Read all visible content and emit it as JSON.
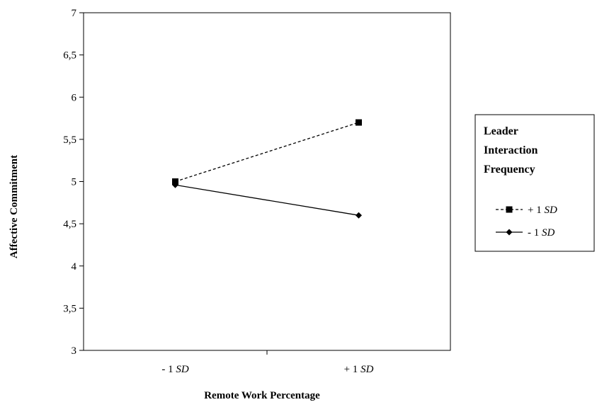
{
  "chart_data": {
    "type": "line",
    "categories": [
      {
        "prefix": "- 1 ",
        "suffix": "SD"
      },
      {
        "prefix": "+ 1 ",
        "suffix": "SD"
      }
    ],
    "series": [
      {
        "name_prefix": "+ 1 ",
        "name_suffix": "SD",
        "values": [
          5.0,
          5.7
        ],
        "line_style": "dashed",
        "marker": "square",
        "color": "#000000"
      },
      {
        "name_prefix": "- 1 ",
        "name_suffix": "SD",
        "values": [
          4.96,
          4.6
        ],
        "line_style": "solid",
        "marker": "diamond",
        "color": "#000000"
      }
    ],
    "xlabel": "Remote Work Percentage",
    "ylabel": "Affective Commitment",
    "ylim": [
      3,
      7
    ],
    "yticks": [
      3,
      3.5,
      4,
      4.5,
      5,
      5.5,
      6,
      6.5,
      7
    ],
    "ytick_labels": [
      "3",
      "3,5",
      "4",
      "4,5",
      "5",
      "5,5",
      "6",
      "6,5",
      "7"
    ],
    "grid": false,
    "legend": {
      "title_lines": [
        "Leader",
        "Interaction",
        "Frequency"
      ],
      "placement": "right"
    }
  }
}
